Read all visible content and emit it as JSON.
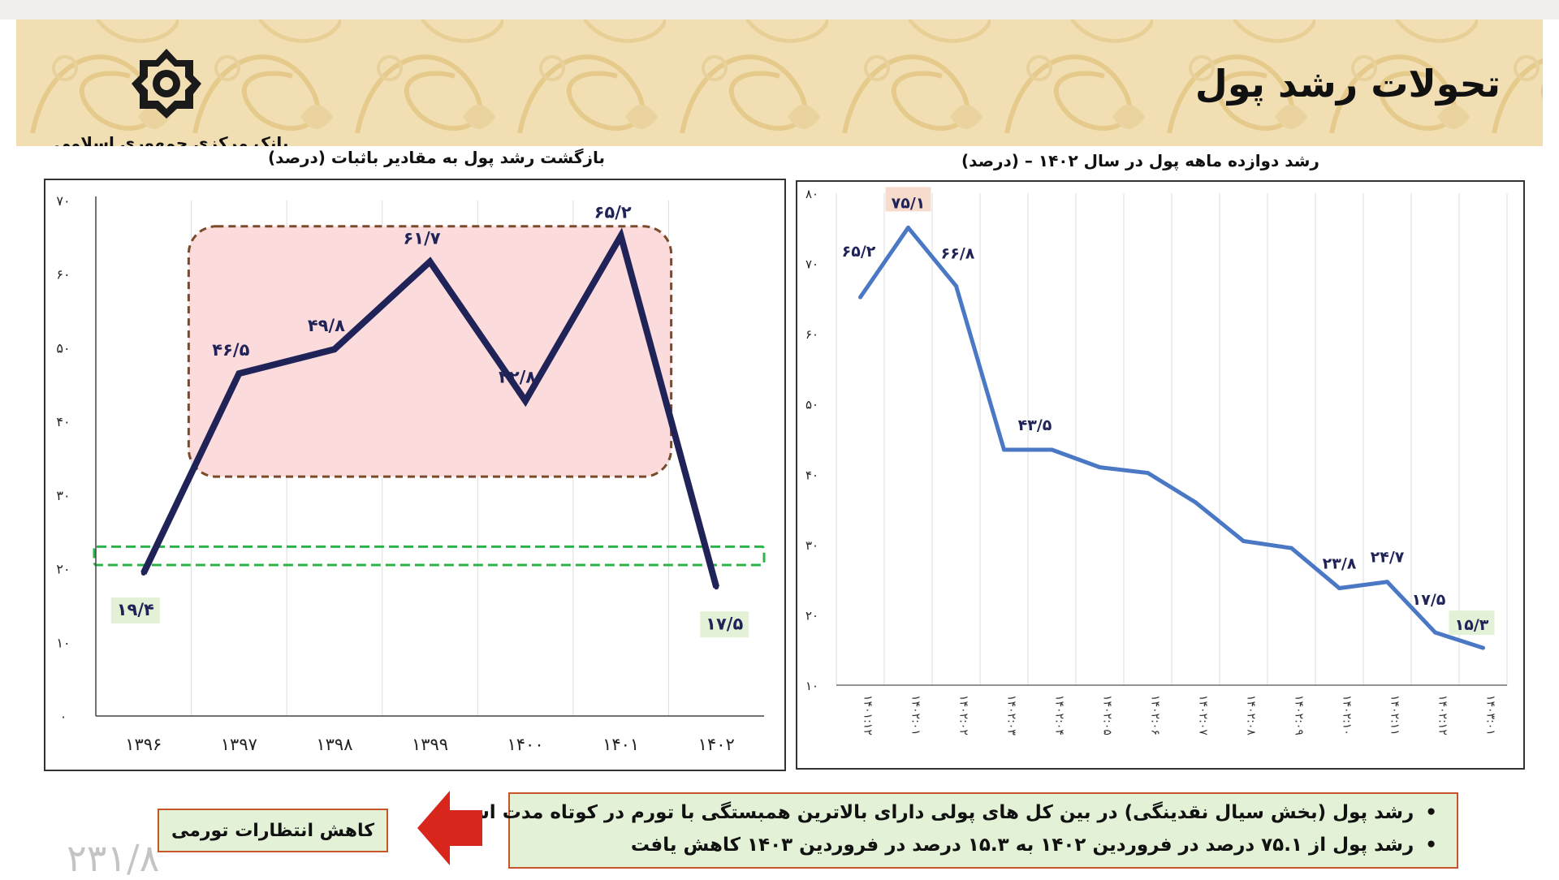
{
  "header": {
    "title": "تحولات رشد پول",
    "bank_name": "بانک مرکزی جمهوری اسلامی ایران"
  },
  "left_panel": {
    "title": "بازگشت رشد پول به مقادیر باثبات (درصد)"
  },
  "right_panel": {
    "title": "رشد دوازده ماهه پول در سال ۱۴۰۲ – (درصد)"
  },
  "footer": {
    "bullets": [
      "رشد پول (بخش سیال نقدینگی) در بین کل های پولی دارای بالاترین همبستگی با تورم در کوتاه مدت است",
      "رشد پول از ۷۵.۱ درصد در فروردین ۱۴۰۲ به ۱۵.۳ درصد در فروردین ۱۴۰۳ کاهش یافت"
    ],
    "arrow_label": "کاهش انتظارات تورمی",
    "page_number": "۲۳۱/۸"
  },
  "colors": {
    "left_line": "#1f2357",
    "right_line": "#4a78c5",
    "highlight_fill": "#fbdbdc",
    "highlight_border": "#7a4a2a",
    "stable_band": "#2bb34a",
    "arrow": "#d9261c"
  },
  "chart_data": [
    {
      "type": "line",
      "categories": [
        "۱۳۹۶",
        "۱۳۹۷",
        "۱۳۹۸",
        "۱۳۹۹",
        "۱۴۰۰",
        "۱۴۰۱",
        "۱۴۰۲"
      ],
      "values": [
        19.4,
        46.5,
        49.8,
        61.7,
        42.8,
        65.2,
        17.5
      ],
      "labels": [
        "۱۹/۴",
        "۴۶/۵",
        "۴۹/۸",
        "۶۱/۷",
        "۴۲/۸",
        "۶۵/۲",
        "۱۷/۵"
      ],
      "y_ticks": [
        "۰",
        "۱۰",
        "۲۰",
        "۳۰",
        "۴۰",
        "۵۰",
        "۶۰",
        "۷۰"
      ],
      "ylim": [
        0,
        70
      ],
      "stable_band": [
        20.5,
        23.0
      ],
      "highlight_years": [
        "۱۳۹۷",
        "۱۴۰۱"
      ],
      "grid": "vertical"
    },
    {
      "type": "line",
      "categories": [
        "۱۴۰۱:۱۲",
        "۱۴۰۲:۰۱",
        "۱۴۰۲:۰۲",
        "۱۴۰۲:۰۳",
        "۱۴۰۲:۰۴",
        "۱۴۰۲:۰۵",
        "۱۴۰۲:۰۶",
        "۱۴۰۲:۰۷",
        "۱۴۰۲:۰۸",
        "۱۴۰۲:۰۹",
        "۱۴۰۲:۱۰",
        "۱۴۰۲:۱۱",
        "۱۴۰۲:۱۲",
        "۱۴۰۳:۰۱"
      ],
      "values": [
        65.2,
        75.1,
        66.8,
        43.5,
        43.5,
        41.0,
        40.2,
        36.0,
        30.5,
        29.5,
        23.8,
        24.7,
        17.5,
        15.3
      ],
      "labels": [
        "۶۵/۲",
        "۷۵/۱",
        "۶۶/۸",
        "۴۳/۵",
        null,
        null,
        null,
        null,
        null,
        null,
        "۲۳/۸",
        "۲۴/۷",
        "۱۷/۵",
        "۱۵/۳"
      ],
      "y_ticks": [
        "۱۰",
        "۲۰",
        "۳۰",
        "۴۰",
        "۵۰",
        "۶۰",
        "۷۰",
        "۸۰"
      ],
      "ylim": [
        10,
        80
      ],
      "grid": "vertical"
    }
  ]
}
